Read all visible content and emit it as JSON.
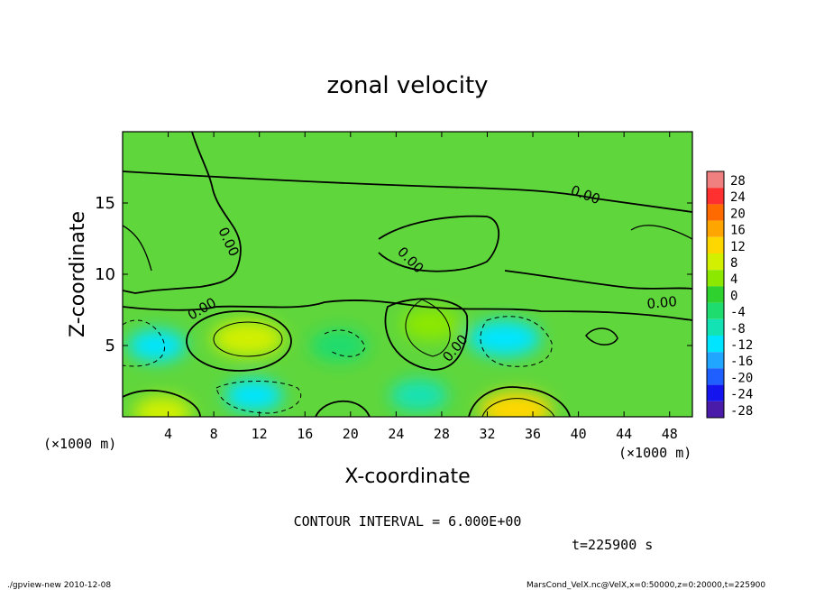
{
  "chart_data": {
    "type": "heatmap",
    "title": "zonal velocity",
    "xlabel": "X-coordinate",
    "ylabel": "Z-coordinate",
    "x_unit": "(×1000 m)",
    "xlim": [
      0,
      50
    ],
    "ylim": [
      0,
      20
    ],
    "x_ticks": [
      4,
      8,
      12,
      16,
      20,
      24,
      28,
      32,
      36,
      40,
      44,
      48
    ],
    "y_ticks": [
      5,
      10,
      15
    ],
    "contour_interval_text": "CONTOUR INTERVAL = 6.000E+00",
    "time_text": "t=225900 s",
    "contour_labels": [
      "0.00",
      "0.00",
      "0.00",
      "0.00",
      "0.00",
      "0.00"
    ],
    "colorbar": {
      "levels": [
        28,
        24,
        20,
        16,
        12,
        8,
        4,
        0,
        -4,
        -8,
        -12,
        -16,
        -20,
        -24,
        -28
      ],
      "colors": [
        "#f08080",
        "#ff3030",
        "#ff6a00",
        "#ffa500",
        "#ffd700",
        "#d2f000",
        "#8de800",
        "#2ed12e",
        "#1edc6e",
        "#12e2b4",
        "#00e5ff",
        "#21a6ff",
        "#1f5fff",
        "#1414ee",
        "#4a1aa8"
      ]
    },
    "velocity_features": [
      {
        "x": 11,
        "z": 5.5,
        "u": 10
      },
      {
        "x": 27,
        "z": 6.5,
        "u": 6
      },
      {
        "x": 34.5,
        "z": 0.5,
        "u": 14
      },
      {
        "x": 3.5,
        "z": 0.3,
        "u": 9
      },
      {
        "x": 33.5,
        "z": 5.5,
        "u": -10
      },
      {
        "x": 3,
        "z": 5,
        "u": -9
      },
      {
        "x": 11.5,
        "z": 1.5,
        "u": -9
      },
      {
        "x": 26,
        "z": 1.5,
        "u": -8
      },
      {
        "x": 19,
        "z": 5,
        "u": -3
      }
    ]
  },
  "footer": {
    "left": "./gpview-new   2010-12-08",
    "right": "MarsCond_VelX.nc@VelX,x=0:50000,z=0:20000,t=225900"
  }
}
